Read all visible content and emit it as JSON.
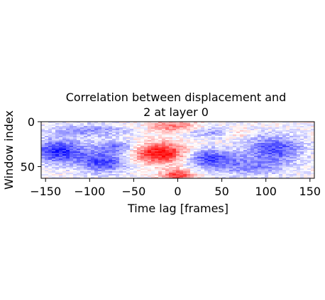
{
  "chart_data": {
    "type": "heatmap",
    "title": [
      "Correlation between displacement and",
      "2 at layer 0"
    ],
    "xlabel": "Time lag [frames]",
    "ylabel": "Window index",
    "x_range": [
      -155,
      155
    ],
    "y_range": [
      0,
      63
    ],
    "y_inverted": true,
    "x_ticks": [
      -150,
      -100,
      -50,
      0,
      50,
      100,
      150
    ],
    "x_tick_labels": [
      "−150",
      "−100",
      "−50",
      "0",
      "50",
      "100",
      "150"
    ],
    "y_ticks": [
      0,
      50
    ],
    "y_tick_labels": [
      "0",
      "50"
    ],
    "colormap": "bwr",
    "color_low": "#0000ff",
    "color_mid": "#ffffff",
    "color_high": "#ff0000",
    "grid": false,
    "blobs": [
      {
        "x": -20,
        "y": 35,
        "sx": 22,
        "sy": 8,
        "v": 1.0
      },
      {
        "x": -5,
        "y": 5,
        "sx": 18,
        "sy": 5,
        "v": 0.55
      },
      {
        "x": 0,
        "y": 60,
        "sx": 12,
        "sy": 5,
        "v": 0.8
      },
      {
        "x": 68,
        "y": 12,
        "sx": 10,
        "sy": 4,
        "v": 0.35
      },
      {
        "x": -135,
        "y": 33,
        "sx": 20,
        "sy": 9,
        "v": -0.85
      },
      {
        "x": -85,
        "y": 45,
        "sx": 20,
        "sy": 8,
        "v": -0.75
      },
      {
        "x": -70,
        "y": 28,
        "sx": 18,
        "sy": 5,
        "v": -0.5
      },
      {
        "x": -100,
        "y": 10,
        "sx": 30,
        "sy": 5,
        "v": -0.4
      },
      {
        "x": 35,
        "y": 40,
        "sx": 20,
        "sy": 7,
        "v": -0.7
      },
      {
        "x": 110,
        "y": 30,
        "sx": 22,
        "sy": 10,
        "v": -0.7
      },
      {
        "x": 80,
        "y": 50,
        "sx": 30,
        "sy": 7,
        "v": -0.45
      },
      {
        "x": 40,
        "y": 12,
        "sx": 28,
        "sy": 4,
        "v": -0.35
      }
    ]
  }
}
